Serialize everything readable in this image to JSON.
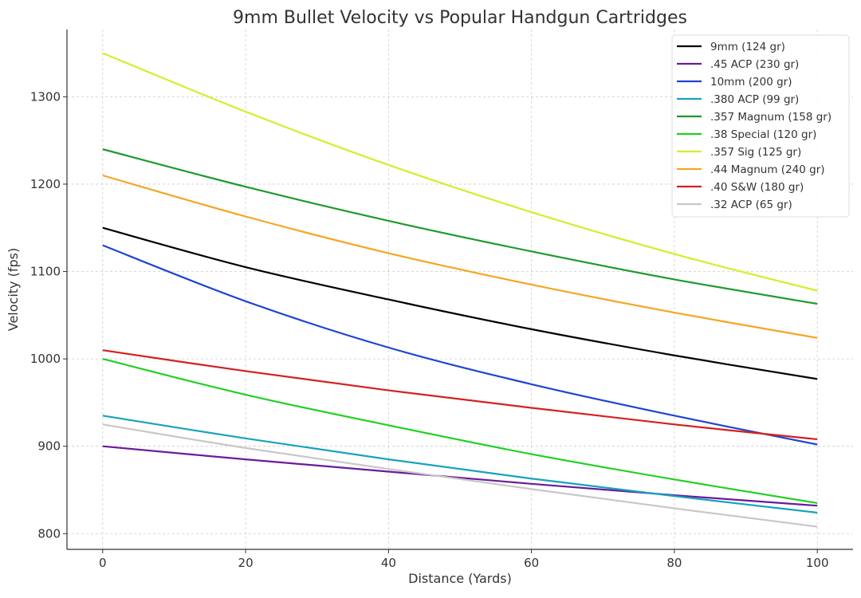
{
  "chart_data": {
    "type": "line",
    "title": "9mm Bullet Velocity vs Popular Handgun Cartridges",
    "xlabel": "Distance (Yards)",
    "ylabel": "Velocity (fps)",
    "xlim": [
      -5,
      105
    ],
    "ylim": [
      782,
      1377
    ],
    "xticks": [
      0,
      20,
      40,
      60,
      80,
      100
    ],
    "yticks": [
      800,
      900,
      1000,
      1100,
      1200,
      1300
    ],
    "grid": true,
    "legend_position": "top-right",
    "x": [
      0,
      20,
      40,
      60,
      80,
      100
    ],
    "series": [
      {
        "name": "9mm (124 gr)",
        "color": "#000000",
        "values": [
          1150,
          1105,
          1068,
          1034,
          1004,
          977
        ]
      },
      {
        "name": ".45 ACP (230 gr)",
        "color": "#6a1b9a",
        "values": [
          900,
          885,
          871,
          857,
          844,
          832
        ]
      },
      {
        "name": "10mm (200 gr)",
        "color": "#1f45d0",
        "values": [
          1130,
          1066,
          1013,
          971,
          935,
          902
        ]
      },
      {
        "name": ".380 ACP (99 gr)",
        "color": "#17a2bf",
        "values": [
          935,
          909,
          885,
          863,
          843,
          824
        ]
      },
      {
        "name": ".357 Magnum (158 gr)",
        "color": "#1f9a2f",
        "values": [
          1240,
          1197,
          1158,
          1123,
          1091,
          1063
        ]
      },
      {
        "name": ".38 Special (120 gr)",
        "color": "#22d022",
        "values": [
          1000,
          959,
          924,
          891,
          862,
          835
        ]
      },
      {
        "name": ".357 Sig (125 gr)",
        "color": "#d4ee2a",
        "values": [
          1350,
          1283,
          1222,
          1168,
          1120,
          1078
        ]
      },
      {
        "name": ".44 Magnum (240 gr)",
        "color": "#f5a623",
        "values": [
          1210,
          1163,
          1121,
          1085,
          1053,
          1024
        ]
      },
      {
        "name": ".40 S&W (180 gr)",
        "color": "#d42020",
        "values": [
          1010,
          986,
          964,
          944,
          925,
          908
        ]
      },
      {
        "name": ".32 ACP (65 gr)",
        "color": "#c8c8c8",
        "values": [
          925,
          898,
          874,
          851,
          829,
          808
        ]
      }
    ]
  }
}
